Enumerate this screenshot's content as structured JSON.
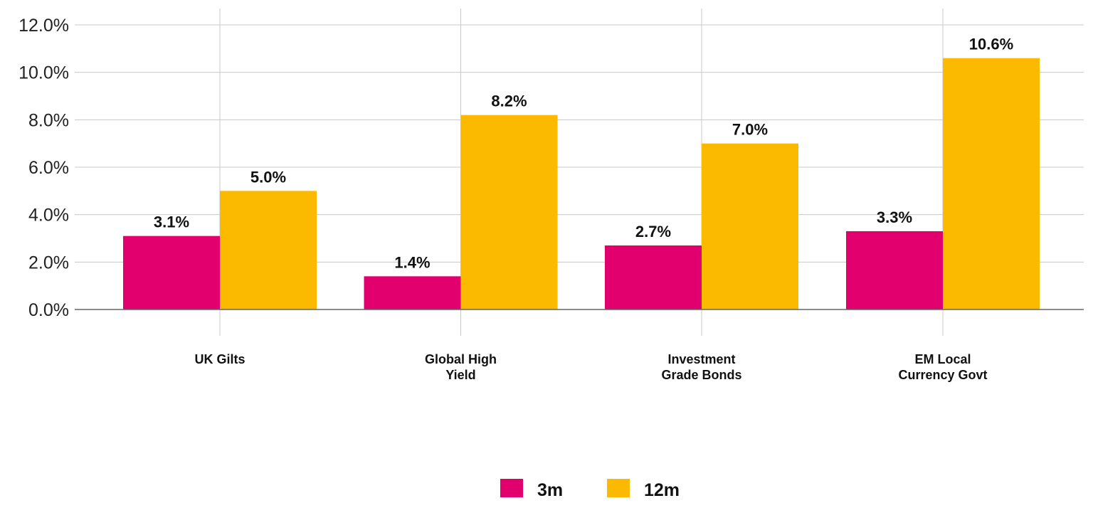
{
  "chart_data": {
    "type": "bar",
    "title": "",
    "xlabel": "",
    "ylabel": "",
    "categories": [
      [
        "UK Gilts"
      ],
      [
        "Global High",
        "Yield"
      ],
      [
        "Investment",
        "Grade Bonds"
      ],
      [
        "EM Local",
        "Currency Govt"
      ]
    ],
    "series": [
      {
        "name": "3m",
        "values": [
          3.1,
          1.4,
          2.7,
          3.3
        ],
        "labels": [
          "3.1%",
          "1.4%",
          "2.7%",
          "3.3%"
        ],
        "color": "#E2006F"
      },
      {
        "name": "12m",
        "values": [
          5.0,
          8.2,
          7.0,
          10.6
        ],
        "labels": [
          "5.0%",
          "8.2%",
          "7.0%",
          "10.6%"
        ],
        "color": "#FBB900"
      }
    ],
    "ylim": [
      0,
      12
    ],
    "yticks": [
      0,
      2,
      4,
      6,
      8,
      10,
      12
    ],
    "ytick_labels": [
      "0.0%",
      "2.0%",
      "4.0%",
      "6.0%",
      "8.0%",
      "10.0%",
      "12.0%"
    ],
    "grid": true,
    "legend_position": "bottom"
  }
}
